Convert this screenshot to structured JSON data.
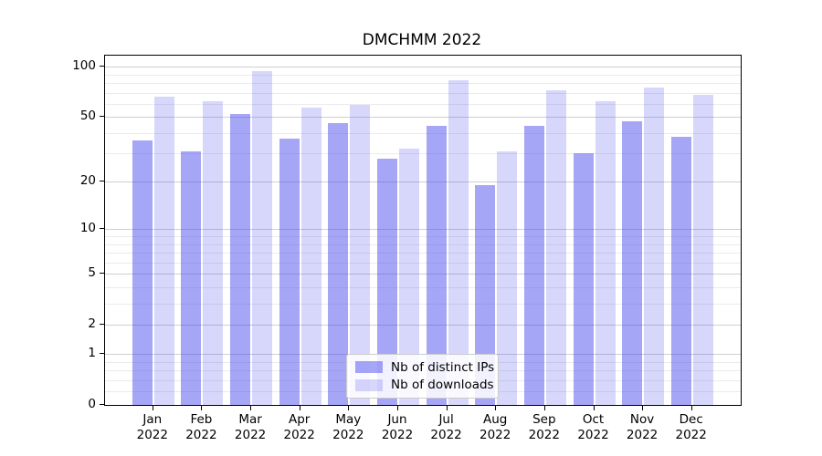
{
  "chart_data": {
    "type": "bar",
    "title": "DMCHMM 2022",
    "categories": [
      "Jan 2022",
      "Feb 2022",
      "Mar 2022",
      "Apr 2022",
      "May 2022",
      "Jun 2022",
      "Jul 2022",
      "Aug 2022",
      "Sep 2022",
      "Oct 2022",
      "Nov 2022",
      "Dec 2022"
    ],
    "series": [
      {
        "id": "distinct-ips",
        "name": "Nb of distinct IPs",
        "color": "#a6a6f7",
        "rgba": "rgba(68,68,238,0.48)",
        "values": [
          36,
          31,
          52,
          37,
          46,
          28,
          44,
          19,
          44,
          30,
          47,
          38
        ]
      },
      {
        "id": "downloads",
        "name": "Nb of downloads",
        "color": "#d8d8f8",
        "rgba": "rgba(68,68,238,0.21)",
        "values": [
          66,
          62,
          94,
          57,
          59,
          32,
          83,
          31,
          72,
          62,
          75,
          68
        ]
      }
    ],
    "xlabel": "",
    "ylabel": "",
    "yscale": "symlog (log10(1+y))",
    "ylim": [
      0,
      117
    ],
    "y_ticks": [
      {
        "value": 100,
        "label": "100"
      },
      {
        "value": 50,
        "label": "50"
      },
      {
        "value": 20,
        "label": "20"
      },
      {
        "value": 10,
        "label": "10"
      },
      {
        "value": 5,
        "label": "5"
      },
      {
        "value": 2,
        "label": "2"
      },
      {
        "value": 1,
        "label": "1"
      },
      {
        "value": 0,
        "label": "0"
      }
    ],
    "y_minor_gridlines": [
      0.2,
      0.4,
      0.6,
      0.8,
      3,
      4,
      6,
      7,
      8,
      9,
      30,
      40,
      60,
      70,
      80,
      90
    ],
    "grid": true,
    "legend_position": "lower center"
  },
  "colors": {
    "bar_ips": "#a6a6f7",
    "bar_downloads": "#d8d8f8",
    "grid_major": "#cfcfcf",
    "grid_minor": "#ebebeb",
    "axis": "#000000",
    "legend_border": "#cccccc"
  }
}
